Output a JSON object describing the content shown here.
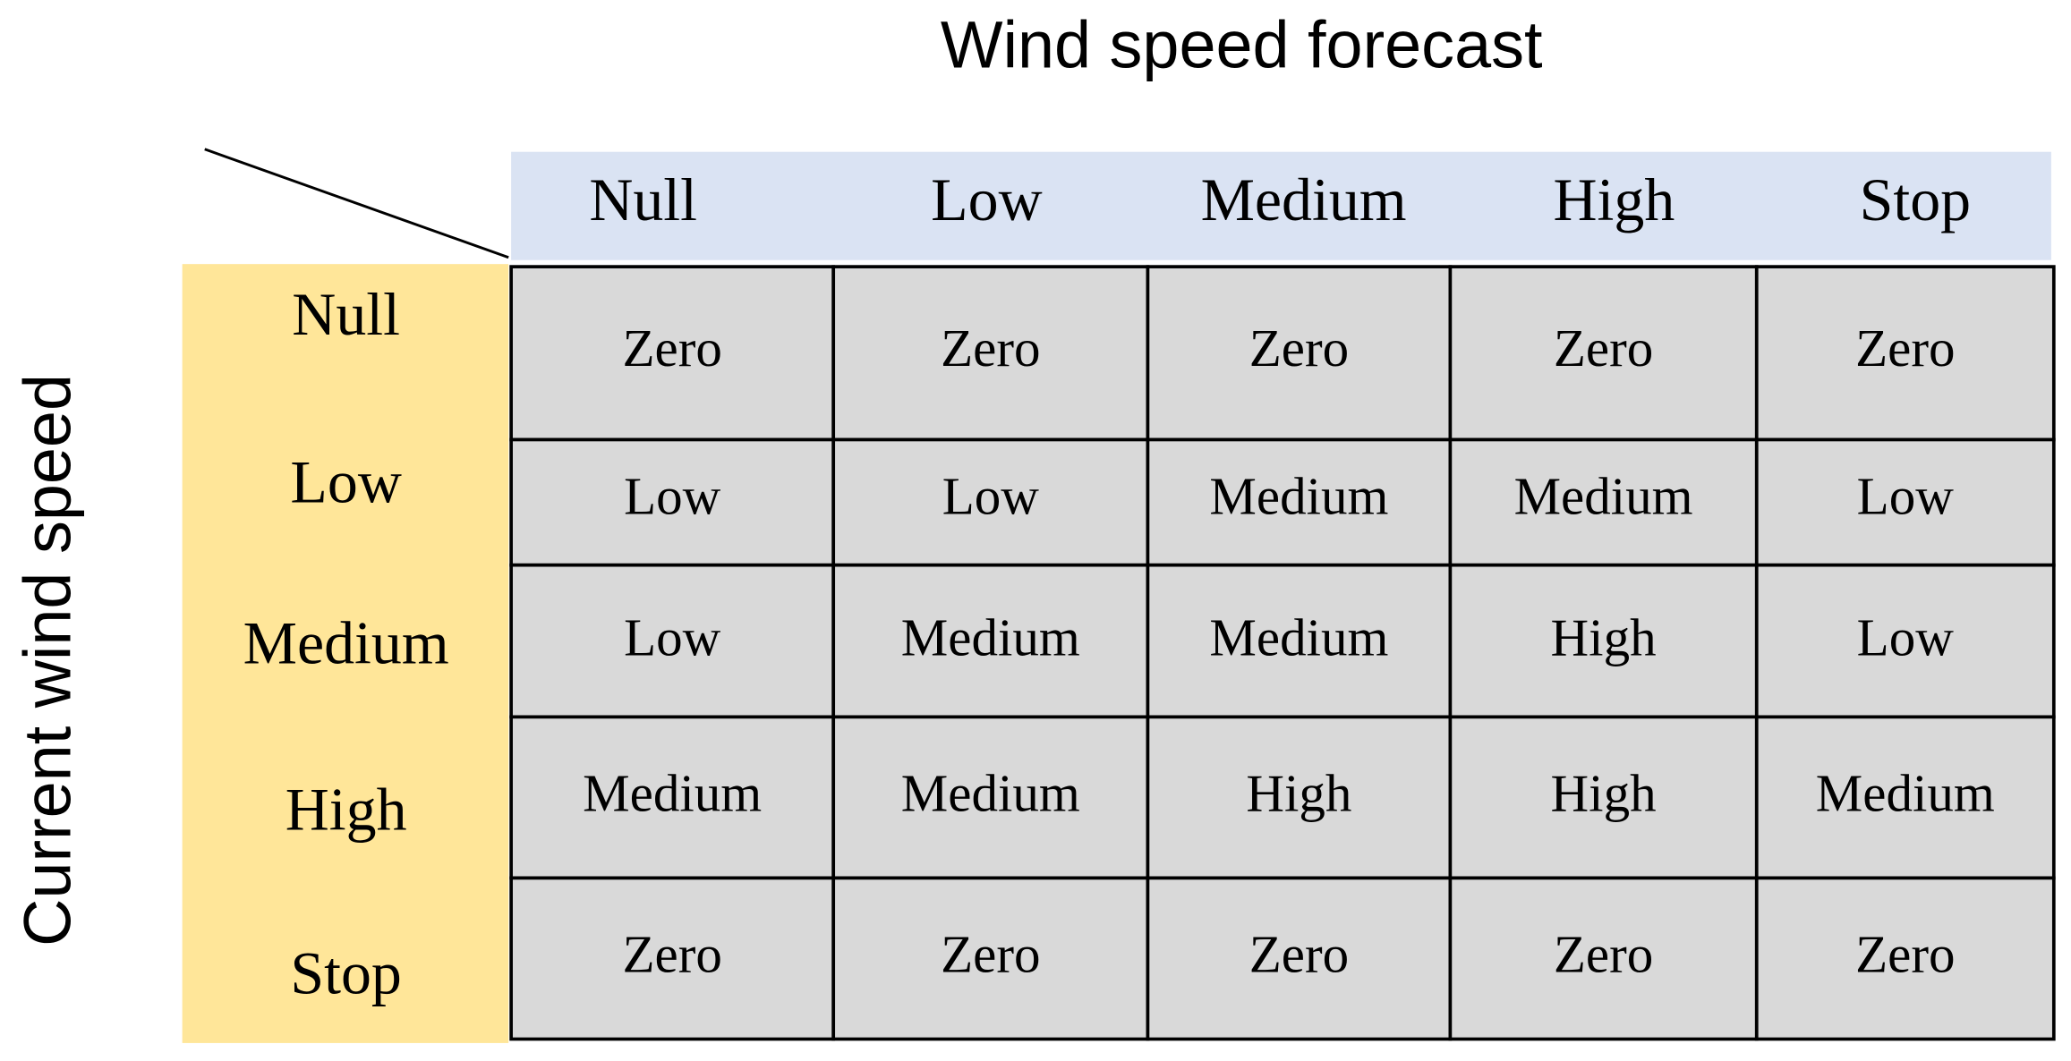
{
  "title": "Wind speed forecast",
  "row_axis_label": "Current wind speed",
  "columns": [
    "Null",
    "Low",
    "Medium",
    "High",
    "Stop"
  ],
  "rows": [
    {
      "label": "Null",
      "cells": [
        "Zero",
        "Zero",
        "Zero",
        "Zero",
        "Zero"
      ]
    },
    {
      "label": "Low",
      "cells": [
        "Low",
        "Low",
        "Medium",
        "Medium",
        "Low"
      ]
    },
    {
      "label": "Medium",
      "cells": [
        "Low",
        "Medium",
        "Medium",
        "High",
        "Low"
      ]
    },
    {
      "label": "High",
      "cells": [
        "Medium",
        "Medium",
        "High",
        "High",
        "Medium"
      ]
    },
    {
      "label": "Stop",
      "cells": [
        "Zero",
        "Zero",
        "Zero",
        "Zero",
        "Zero"
      ]
    }
  ]
}
